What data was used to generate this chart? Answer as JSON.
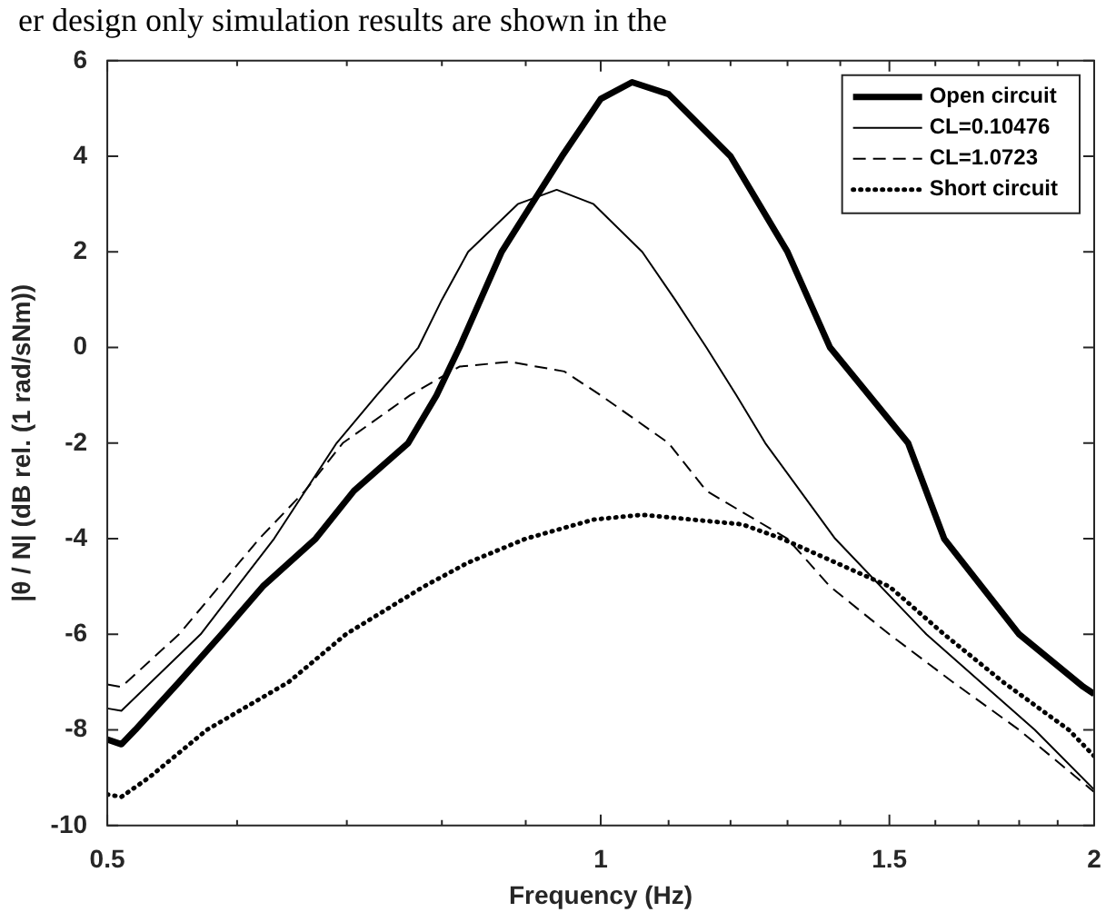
{
  "chart_data": {
    "type": "line",
    "xlabel": "Frequency (Hz)",
    "ylabel": "|θ / N| (dB rel. (1 rad/sNm))",
    "annotations": [
      "er design only simulation results are shown in the"
    ],
    "log": "x",
    "xlim": [
      0.5,
      2
    ],
    "ylim": [
      -10,
      6
    ],
    "xticks": [
      0.5,
      {
        "value": 0.6,
        "label": null
      },
      {
        "value": 0.7,
        "label": null
      },
      {
        "value": 0.8,
        "label": null
      },
      {
        "value": 0.9,
        "label": null
      },
      1,
      {
        "value": 1.1,
        "label": null
      },
      {
        "value": 1.2,
        "label": null
      },
      {
        "value": 1.3,
        "label": null
      },
      {
        "value": 1.4,
        "label": null
      },
      1.5,
      {
        "value": 1.6,
        "label": null
      },
      {
        "value": 1.7,
        "label": null
      },
      {
        "value": 1.8,
        "label": null
      },
      {
        "value": 1.9,
        "label": null
      },
      2
    ],
    "yticks": [
      -10,
      -8,
      -6,
      -4,
      -2,
      0,
      2,
      4,
      6
    ],
    "legend": "top right",
    "grid": false,
    "marker": "none",
    "series": [
      {
        "name": "Open circuit",
        "color": "#000000",
        "line_style": "solid",
        "x": [
          0.5,
          0.51,
          0.52,
          0.553,
          0.587,
          0.622,
          0.67,
          0.707,
          0.763,
          0.794,
          0.82,
          0.87,
          0.947,
          1.0,
          1.045,
          1.1,
          1.2,
          1.3,
          1.38,
          1.54,
          1.62,
          1.8,
          1.97,
          2.0
        ],
        "values": [
          -8.2,
          -8.3,
          -8.0,
          -7.0,
          -6.0,
          -5.0,
          -4.0,
          -3.0,
          -2.0,
          -1.0,
          0.0,
          2.0,
          4.0,
          5.2,
          5.55,
          5.3,
          4.0,
          2.0,
          0.0,
          -2.0,
          -4.0,
          -6.0,
          -7.1,
          -7.25
        ]
      },
      {
        "name": "CL=0.10476",
        "color": "#000000",
        "line_style": "solid",
        "x": [
          0.5,
          0.51,
          0.57,
          0.632,
          0.69,
          0.73,
          0.774,
          0.8,
          0.83,
          0.89,
          0.94,
          0.99,
          1.06,
          1.11,
          1.16,
          1.21,
          1.26,
          1.39,
          1.58,
          1.84,
          2.0
        ],
        "values": [
          -7.55,
          -7.6,
          -6.0,
          -4.0,
          -2.0,
          -1.0,
          0.0,
          1.0,
          2.0,
          3.0,
          3.3,
          3.0,
          2.0,
          1.0,
          0.0,
          -1.0,
          -2.0,
          -4.0,
          -6.0,
          -8.0,
          -9.25
        ]
      },
      {
        "name": "CL=1.0723",
        "color": "#000000",
        "line_style": "dashed",
        "x": [
          0.5,
          0.51,
          0.553,
          0.619,
          0.66,
          0.696,
          0.765,
          0.82,
          0.88,
          0.95,
          1.0,
          1.1,
          1.16,
          1.3,
          1.38,
          1.5,
          1.64,
          1.8,
          2.0
        ],
        "values": [
          -7.05,
          -7.1,
          -6.0,
          -4.0,
          -3.0,
          -2.0,
          -1.0,
          -0.4,
          -0.3,
          -0.5,
          -1.0,
          -2.0,
          -3.0,
          -4.0,
          -5.0,
          -6.0,
          -7.0,
          -8.0,
          -9.3
        ]
      },
      {
        "name": "Short circuit",
        "color": "#000000",
        "line_style": "dotted",
        "x": [
          0.5,
          0.51,
          0.53,
          0.575,
          0.645,
          0.699,
          0.78,
          0.83,
          0.9,
          0.99,
          1.06,
          1.22,
          1.29,
          1.5,
          1.62,
          1.76,
          1.93,
          2.0
        ],
        "values": [
          -9.35,
          -9.4,
          -9.0,
          -8.0,
          -7.0,
          -6.0,
          -5.0,
          -4.5,
          -4.0,
          -3.6,
          -3.5,
          -3.7,
          -4.0,
          -5.0,
          -6.0,
          -7.0,
          -8.0,
          -8.55
        ]
      }
    ]
  }
}
